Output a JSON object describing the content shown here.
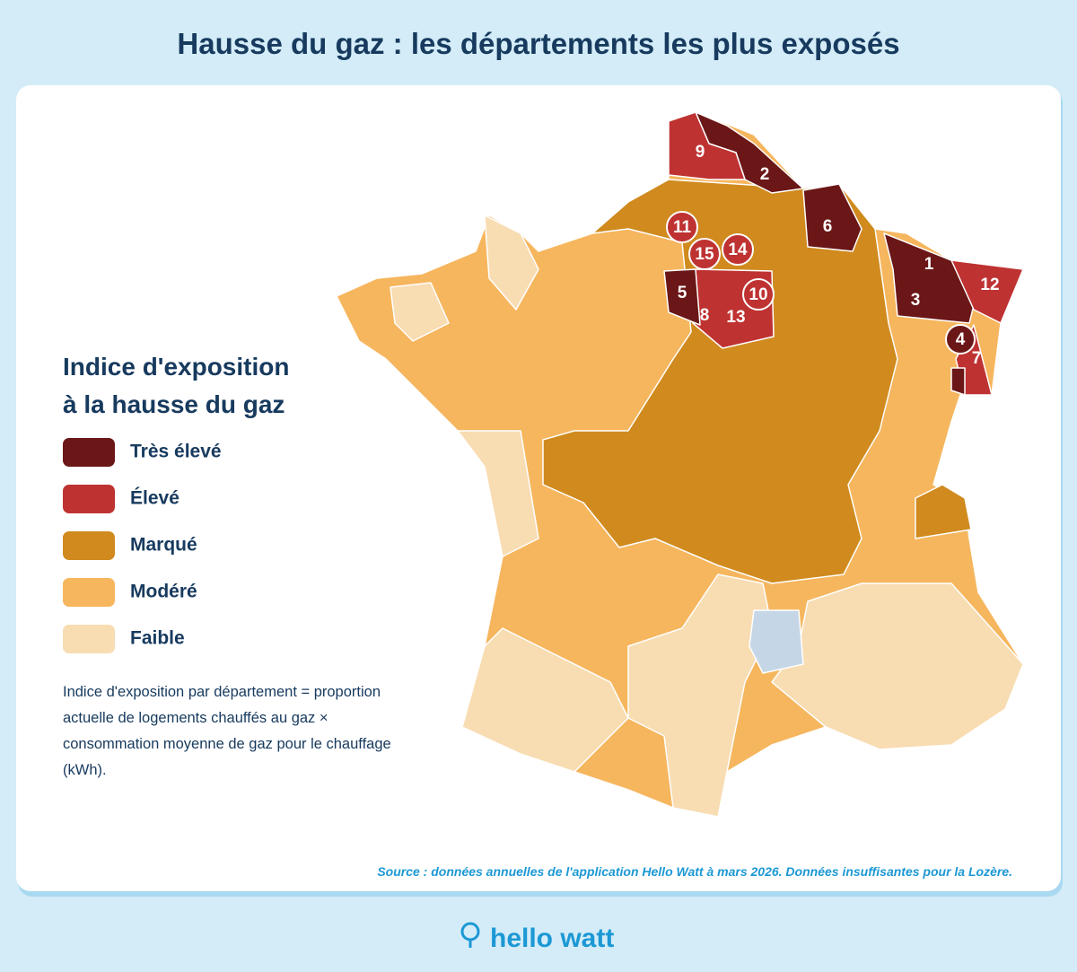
{
  "header": {
    "title": "Hausse du gaz : les départements les plus exposés"
  },
  "legend": {
    "title_lines": [
      "Indice d'exposition",
      "à la hausse du gaz"
    ],
    "items": [
      {
        "label": "Très élevé",
        "color": "#6b1717"
      },
      {
        "label": "Élevé",
        "color": "#bf3232"
      },
      {
        "label": "Marqué",
        "color": "#d08a1e"
      },
      {
        "label": "Modéré",
        "color": "#f6b65e"
      },
      {
        "label": "Faible",
        "color": "#f8dcb2"
      }
    ]
  },
  "note_lines": [
    "Indice d'exposition par département = proportion",
    "actuelle de logements chauffés au gaz ×",
    "consommation moyenne de gaz pour le chauffage",
    "(kWh)."
  ],
  "source": "Source : données annuelles de l'application Hello Watt à mars 2026. Données insuffisantes pour la Lozère.",
  "brand": "hello watt",
  "markers": [
    "1",
    "2",
    "3",
    "4",
    "5",
    "6",
    "7",
    "8",
    "9",
    "10",
    "11",
    "12",
    "13",
    "14",
    "15"
  ]
}
